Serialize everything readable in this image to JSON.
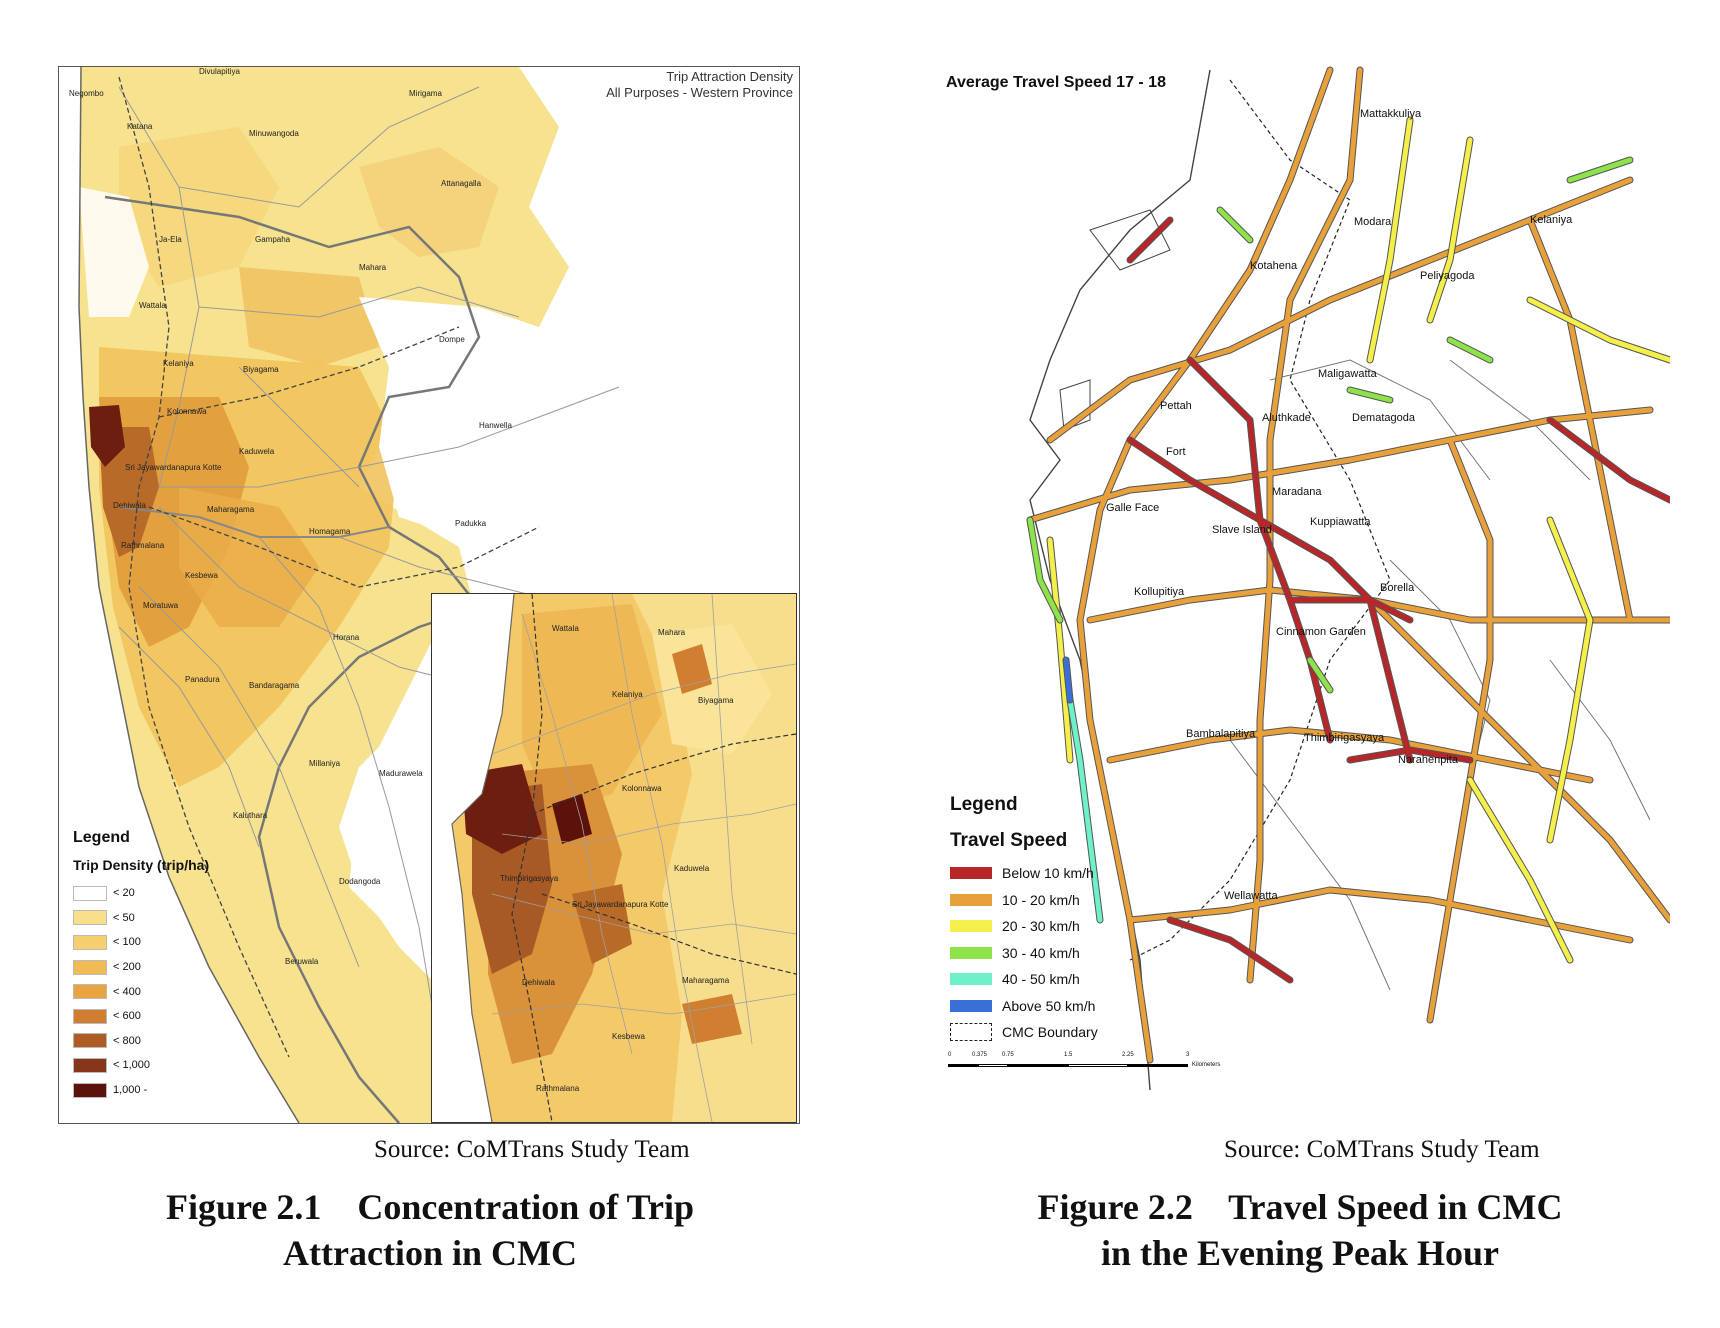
{
  "figure1": {
    "map_title_line1": "Trip Attraction Density",
    "map_title_line2": "All Purposes - Western Province",
    "places": [
      "Negombo",
      "Divulapitiya",
      "Minuwangoda",
      "Katana",
      "Ja-Ela",
      "Gampaha",
      "Attanagalla",
      "Wattala",
      "Mahara",
      "Dompe",
      "Kelaniya",
      "Biyagama",
      "Kolonnawa",
      "Hanwella",
      "Kaduwela",
      "Sri Jayawardanapura Kotte",
      "Maharagama",
      "Padukka",
      "Homagama",
      "Dehiwala",
      "Rathmalana",
      "Kesbewa",
      "Moratuwa",
      "Horana",
      "Panadura",
      "Bandaragama",
      "Millaniya",
      "Madurawela",
      "Kaluthara",
      "Dodangoda",
      "Beruwala",
      "Mirigama"
    ],
    "inset_places": [
      "Wattala",
      "Mahara",
      "Kelaniya",
      "Biyagama",
      "Kolonnawa",
      "Kaduwela",
      "Sri Jayawardanapura Kotte",
      "Thimbirigasyaya",
      "Dehiwala",
      "Maharagama",
      "Kesbewa",
      "Rathmalana"
    ],
    "legend": {
      "heading": "Legend",
      "subheading": "Trip Density (trip/ha)",
      "items": [
        {
          "label": "< 20",
          "color": "#ffffff"
        },
        {
          "label": "< 50",
          "color": "#f8e08a"
        },
        {
          "label": "< 100",
          "color": "#f5cf6d"
        },
        {
          "label": "< 200",
          "color": "#f0bb55"
        },
        {
          "label": "< 400",
          "color": "#e9a340"
        },
        {
          "label": "< 600",
          "color": "#cf7f2f"
        },
        {
          "label": "< 800",
          "color": "#ad5c24"
        },
        {
          "label": "< 1,000",
          "color": "#86361a"
        },
        {
          "label": "1,000 -",
          "color": "#5c110b"
        }
      ]
    },
    "source": "Source: CoMTrans Study Team",
    "caption_line1": "Figure 2.1    Concentration of Trip",
    "caption_line2": "Attraction in CMC"
  },
  "figure2": {
    "map_title": "Average Travel Speed 17 - 18",
    "places": [
      "Mattakkuliya",
      "Modara",
      "Kelaniya",
      "Kotahena",
      "Peliyagoda",
      "Maligawatta",
      "Pettah",
      "Aluthkade",
      "Dematagoda",
      "Fort",
      "Maradana",
      "Galle Face",
      "Slave Island",
      "Kuppiawatta",
      "Kollupitiya",
      "Borella",
      "Cinnamon Garden",
      "Bambalapitiya",
      "Thimbirigasyaya",
      "Narahenpita",
      "Wellawatta"
    ],
    "legend": {
      "heading": "Legend",
      "subheading": "Travel Speed",
      "items": [
        {
          "label": "Below 10 km/h",
          "color": "#b7272a"
        },
        {
          "label": "10 - 20 km/h",
          "color": "#e8a03a"
        },
        {
          "label": "20 - 30 km/h",
          "color": "#f4ef4a"
        },
        {
          "label": "30 - 40 km/h",
          "color": "#8ee24a"
        },
        {
          "label": "40 - 50 km/h",
          "color": "#6ef0c8"
        },
        {
          "label": "Above 50 km/h",
          "color": "#3a6fd8"
        },
        {
          "label": "CMC Boundary",
          "color": "#ffffff"
        }
      ]
    },
    "scale": {
      "ticks": [
        "0",
        "0.375",
        "0.75",
        "1.5",
        "2.25",
        "3"
      ],
      "unit": "Kilometers"
    },
    "source": "Source: CoMTrans Study Team",
    "caption_line1": "Figure 2.2    Travel Speed in CMC",
    "caption_line2": "in the Evening Peak Hour"
  }
}
